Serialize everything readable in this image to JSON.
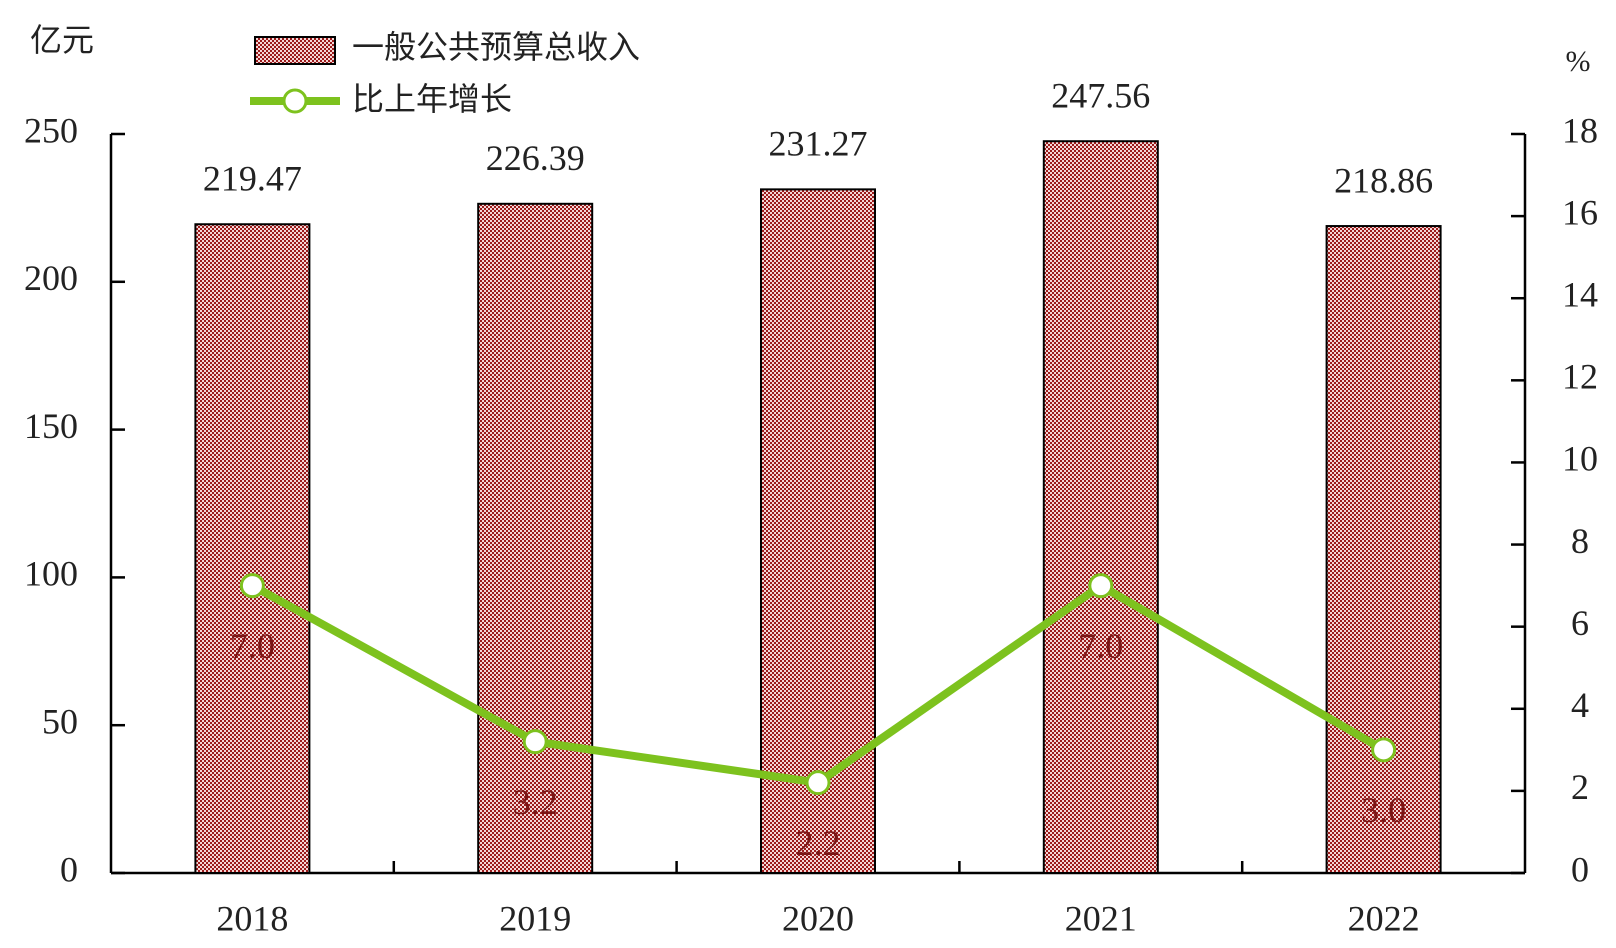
{
  "chart_data": {
    "type": "bar",
    "y_label": "亿元",
    "y2_label": "%",
    "categories": [
      "2018",
      "2019",
      "2020",
      "2021",
      "2022"
    ],
    "series": [
      {
        "name": "一般公共预算总收入",
        "type": "bar",
        "color": "#9b1b1b",
        "values": [
          219.47,
          226.39,
          231.27,
          247.56,
          218.86
        ]
      },
      {
        "name": "比上年增长",
        "type": "line",
        "axis": "y2",
        "color": "#7dc21e",
        "values": [
          7.0,
          3.2,
          2.2,
          7.0,
          3.0
        ],
        "value_labels": [
          "7.0",
          "3.2",
          "2.2",
          "7.0",
          "3.0"
        ]
      }
    ],
    "ylim": [
      0,
      250
    ],
    "yticks": [
      0,
      50,
      100,
      150,
      200,
      250
    ],
    "y2lim": [
      0,
      18
    ],
    "y2ticks": [
      0,
      2,
      4,
      6,
      8,
      10,
      12,
      14,
      16,
      18
    ],
    "legend": "top-left",
    "grid": false
  }
}
